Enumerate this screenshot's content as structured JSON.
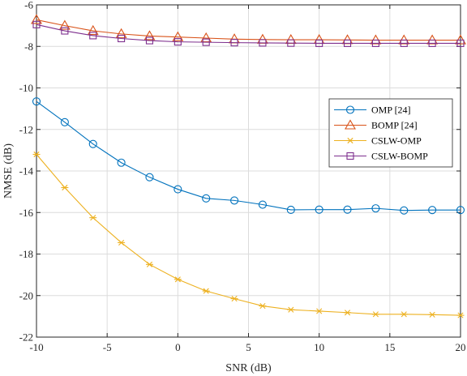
{
  "chart_data": {
    "type": "line",
    "title": "",
    "xlabel": "SNR (dB)",
    "ylabel": "NMSE (dB)",
    "xlim": [
      -10,
      20
    ],
    "ylim": [
      -22,
      -6
    ],
    "xticks": [
      -10,
      -5,
      0,
      5,
      10,
      15,
      20
    ],
    "yticks": [
      -22,
      -20,
      -18,
      -16,
      -14,
      -12,
      -10,
      -8,
      -6
    ],
    "grid": true,
    "legend_position": "right-middle",
    "x": [
      -10,
      -8,
      -6,
      -4,
      -2,
      0,
      2,
      4,
      6,
      8,
      10,
      12,
      14,
      16,
      18,
      20
    ],
    "series": [
      {
        "name": "OMP [24]",
        "color": "#0072BD",
        "marker": "circle",
        "values": [
          -10.65,
          -11.65,
          -12.7,
          -13.6,
          -14.3,
          -14.88,
          -15.32,
          -15.42,
          -15.62,
          -15.87,
          -15.86,
          -15.86,
          -15.8,
          -15.9,
          -15.88,
          -15.88
        ]
      },
      {
        "name": "BOMP [24]",
        "color": "#D95319",
        "marker": "triangle",
        "values": [
          -6.72,
          -7.0,
          -7.25,
          -7.4,
          -7.5,
          -7.55,
          -7.6,
          -7.65,
          -7.67,
          -7.68,
          -7.68,
          -7.69,
          -7.7,
          -7.7,
          -7.7,
          -7.7
        ]
      },
      {
        "name": "CSLW-OMP",
        "color": "#EDB120",
        "marker": "asterisk",
        "values": [
          -13.2,
          -14.8,
          -16.25,
          -17.45,
          -18.5,
          -19.22,
          -19.78,
          -20.15,
          -20.5,
          -20.68,
          -20.75,
          -20.82,
          -20.9,
          -20.9,
          -20.92,
          -20.95
        ]
      },
      {
        "name": "CSLW-BOMP",
        "color": "#7E2F8E",
        "marker": "square",
        "values": [
          -6.95,
          -7.25,
          -7.48,
          -7.62,
          -7.72,
          -7.78,
          -7.8,
          -7.82,
          -7.83,
          -7.84,
          -7.85,
          -7.85,
          -7.85,
          -7.85,
          -7.85,
          -7.85
        ]
      }
    ]
  }
}
